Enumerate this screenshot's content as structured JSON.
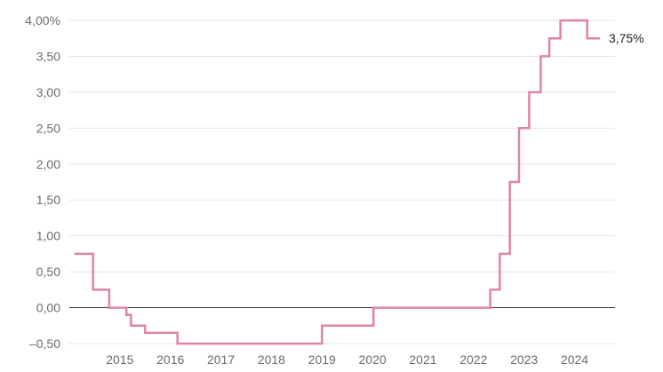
{
  "chart_data": {
    "type": "line",
    "step": true,
    "title": "",
    "xlabel": "",
    "ylabel": "",
    "ylim": [
      -0.5,
      4.0
    ],
    "xlim": [
      2014.0,
      2024.8
    ],
    "grid": true,
    "legend": "none",
    "y_ticks": [
      {
        "value": 4.0,
        "label": "4,00%"
      },
      {
        "value": 3.5,
        "label": "3,50"
      },
      {
        "value": 3.0,
        "label": "3,00"
      },
      {
        "value": 2.5,
        "label": "2,50"
      },
      {
        "value": 2.0,
        "label": "2,00"
      },
      {
        "value": 1.5,
        "label": "1,50"
      },
      {
        "value": 1.0,
        "label": "1,00"
      },
      {
        "value": 0.5,
        "label": "0,50"
      },
      {
        "value": 0.0,
        "label": "0,00"
      },
      {
        "value": -0.5,
        "label": "–0,50"
      }
    ],
    "x_ticks": [
      {
        "value": 2015,
        "label": "2015"
      },
      {
        "value": 2016,
        "label": "2016"
      },
      {
        "value": 2017,
        "label": "2017"
      },
      {
        "value": 2018,
        "label": "2018"
      },
      {
        "value": 2019,
        "label": "2019"
      },
      {
        "value": 2020,
        "label": "2020"
      },
      {
        "value": 2021,
        "label": "2021"
      },
      {
        "value": 2022,
        "label": "2022"
      },
      {
        "value": 2023,
        "label": "2023"
      },
      {
        "value": 2024,
        "label": "2024"
      }
    ],
    "series": [
      {
        "color": "#e083a8",
        "points": [
          [
            2014.1,
            0.75
          ],
          [
            2014.47,
            0.25
          ],
          [
            2014.79,
            0.0
          ],
          [
            2015.13,
            -0.1
          ],
          [
            2015.22,
            -0.25
          ],
          [
            2015.5,
            -0.35
          ],
          [
            2016.14,
            -0.5
          ],
          [
            2019.0,
            -0.25
          ],
          [
            2020.02,
            0.0
          ],
          [
            2022.33,
            0.25
          ],
          [
            2022.52,
            0.75
          ],
          [
            2022.72,
            1.75
          ],
          [
            2022.9,
            2.5
          ],
          [
            2023.1,
            3.0
          ],
          [
            2023.33,
            3.5
          ],
          [
            2023.5,
            3.75
          ],
          [
            2023.72,
            4.0
          ],
          [
            2024.25,
            3.75
          ],
          [
            2024.5,
            3.75
          ]
        ]
      }
    ],
    "end_label": "3,75%",
    "colors": {
      "line": "#e083a8",
      "grid": "#e4e4e4",
      "zero_line": "#333333",
      "tick_text": "#6b6b6b"
    }
  }
}
